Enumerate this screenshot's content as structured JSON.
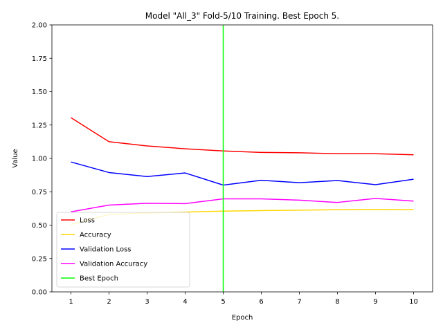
{
  "chart_data": {
    "type": "line",
    "title": "Model \"All_3\" Fold-5/10 Training. Best Epoch 5.",
    "xlabel": "Epoch",
    "ylabel": "Value",
    "x": [
      1,
      2,
      3,
      4,
      5,
      6,
      7,
      8,
      9,
      10
    ],
    "xlim": [
      0.5,
      10.5
    ],
    "ylim": [
      0,
      2
    ],
    "x_ticks": [
      1,
      2,
      3,
      4,
      5,
      6,
      7,
      8,
      9,
      10
    ],
    "y_ticks": [
      "0.00",
      "0.25",
      "0.50",
      "0.75",
      "1.00",
      "1.25",
      "1.50",
      "1.75",
      "2.00"
    ],
    "grid": false,
    "legend_position": "lower-left",
    "series": [
      {
        "name": "Loss",
        "color": "#ff0000",
        "values": [
          1.305,
          1.125,
          1.093,
          1.072,
          1.056,
          1.045,
          1.042,
          1.035,
          1.035,
          1.027
        ]
      },
      {
        "name": "Accuracy",
        "color": "#ffd700",
        "values": [
          0.505,
          0.58,
          0.59,
          0.598,
          0.605,
          0.609,
          0.612,
          0.616,
          0.617,
          0.616
        ]
      },
      {
        "name": "Validation Loss",
        "color": "#0000ff",
        "values": [
          0.973,
          0.894,
          0.864,
          0.891,
          0.8,
          0.836,
          0.818,
          0.834,
          0.803,
          0.844
        ]
      },
      {
        "name": "Validation  Accuracy",
        "color": "#ff00ff",
        "values": [
          0.6,
          0.65,
          0.664,
          0.661,
          0.697,
          0.697,
          0.687,
          0.67,
          0.7,
          0.68
        ]
      }
    ],
    "best_epoch": {
      "name": "Best Epoch",
      "color": "#00ff00",
      "x": 5
    }
  }
}
